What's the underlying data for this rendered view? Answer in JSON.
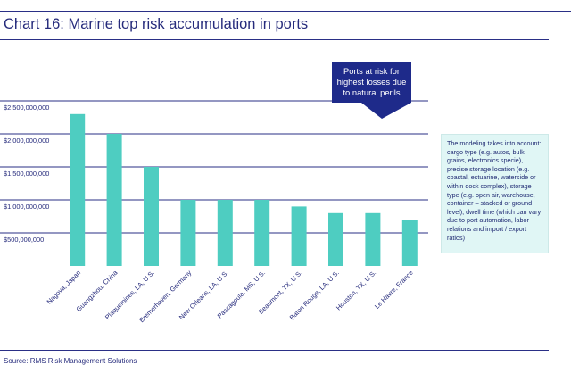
{
  "chart_data": {
    "type": "bar",
    "title": "Chart 16: Marine top risk accumulation in ports",
    "categories": [
      "Nagoya, Japan",
      "Guangzhou, China",
      "Plaquemines, LA, U.S.",
      "Bremerhaven, Germany",
      "New Orleans, LA, U.S.",
      "Pascagoula, MS, U.S.",
      "Beaumont, TX, U.S.",
      "Baton Rouge, LA, U.S.",
      "Houston, TX, U.S.",
      "Le Havre, France"
    ],
    "values": [
      2300000000,
      2000000000,
      1500000000,
      1000000000,
      1000000000,
      1000000000,
      900000000,
      800000000,
      800000000,
      700000000
    ],
    "ylim": [
      0,
      2500000000
    ],
    "yticks": [
      500000000,
      1000000000,
      1500000000,
      2000000000,
      2500000000
    ],
    "yticklabels": [
      "$500,000,000",
      "$1,000,000,000",
      "$1,500,000,000",
      "$2,000,000,000",
      "$2,500,000,000"
    ],
    "xlabel": "",
    "ylabel": "",
    "grid": "horizontal",
    "bar_color": "#4ecdc1",
    "grid_color": "#2a2f86"
  },
  "callout": {
    "lines": [
      "Ports at risk for",
      "highest losses due",
      "to natural perils"
    ],
    "color": "#1e2a8a"
  },
  "note": {
    "text": "The modeling takes into account: cargo type (e.g. autos, bulk grains, electronics specie), precise storage location (e.g. coastal, estuarine, waterside or within dock complex), storage type (e.g. open air, warehouse, container – stacked or ground level), dwell time (which can vary due to port automation, labor relations and import / export ratios)"
  },
  "source": "Source: RMS Risk Management Solutions",
  "colors": {
    "rule": "#2a2f86",
    "text": "#262b7c",
    "note_bg": "#e0f6f5"
  }
}
